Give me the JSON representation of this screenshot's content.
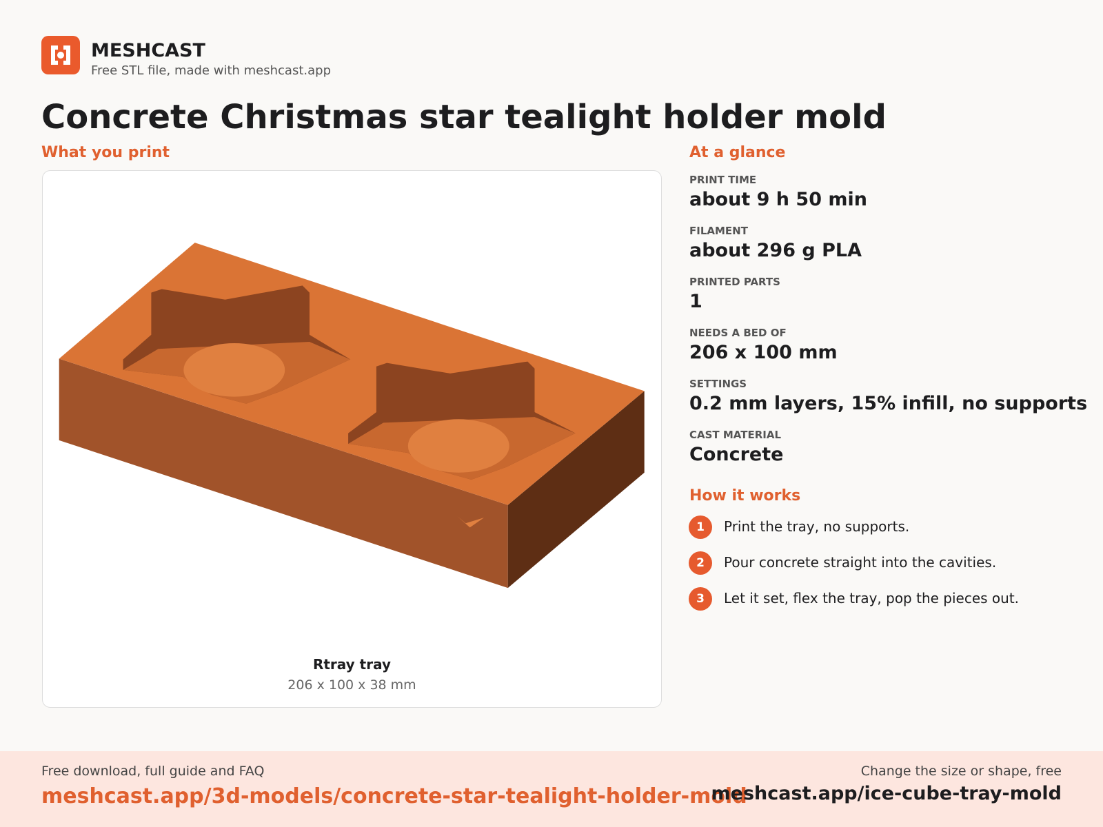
{
  "header": {
    "brand": "MESHCAST",
    "tagline": "Free STL file, made with meshcast.app"
  },
  "title": "Concrete Christmas star tealight holder mold",
  "preview": {
    "heading": "What you print",
    "part_name": "Rtray tray",
    "part_dims": "206 x 100 x 38 mm"
  },
  "glance": {
    "heading": "At a glance",
    "items": [
      {
        "label": "PRINT TIME",
        "value": "about 9 h 50 min"
      },
      {
        "label": "FILAMENT",
        "value": "about 296 g PLA"
      },
      {
        "label": "PRINTED PARTS",
        "value": "1"
      },
      {
        "label": "NEEDS A BED OF",
        "value": "206 x 100 mm"
      },
      {
        "label": "SETTINGS",
        "value": "0.2 mm layers, 15% infill, no supports"
      },
      {
        "label": "CAST MATERIAL",
        "value": "Concrete"
      }
    ]
  },
  "how": {
    "heading": "How it works",
    "steps": [
      {
        "number": "1",
        "text": "Print the tray, no supports."
      },
      {
        "number": "2",
        "text": "Pour concrete straight into the cavities."
      },
      {
        "number": "3",
        "text": "Let it set, flex the tray, pop the pieces out."
      }
    ]
  },
  "footer": {
    "left_label": "Free download, full guide and FAQ",
    "left_link": "meshcast.app/3d-models/concrete-star-tealight-holder-mold",
    "right_label": "Change the size or shape, free",
    "right_link": "meshcast.app/ice-cube-tray-mold"
  }
}
